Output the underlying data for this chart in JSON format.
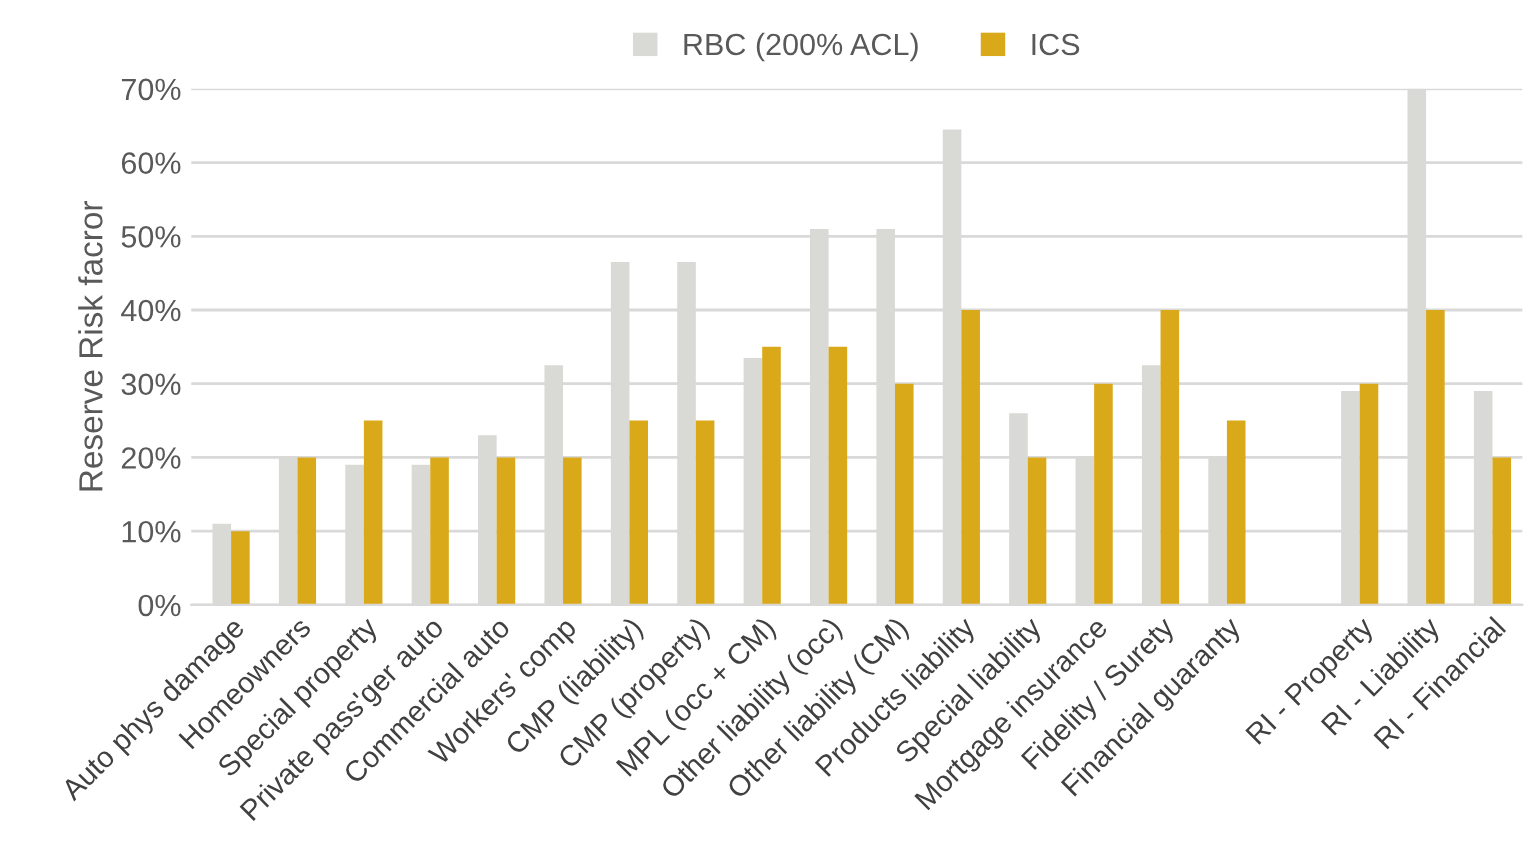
{
  "chart_data": {
    "type": "bar",
    "ylabel": "Reserve Risk facror",
    "categories": [
      "Auto phys damage",
      "Homeowners",
      "Special property",
      "Private pass'ger auto",
      "Commercial auto",
      "Workers' comp",
      "CMP (liability)",
      "CMP (property)",
      "MPL (occ + CM)",
      "Other liability (occ)",
      "Other liability (CM)",
      "Products liability",
      "Special liability",
      "Mortgage insurance",
      "Fidelity / Surety",
      "Financial guaranty",
      null,
      "RI - Property",
      "RI - Liability",
      "RI - Financial"
    ],
    "series": [
      {
        "name": "RBC (200% ACL)",
        "color": "#d9d9d6",
        "values": [
          11,
          20,
          19,
          19,
          23,
          32.5,
          46.5,
          46.5,
          33.5,
          51,
          51,
          64.5,
          26,
          20,
          32.5,
          20,
          null,
          29,
          70,
          29
        ]
      },
      {
        "name": "ICS",
        "color": "#d9a91a",
        "values": [
          10,
          20,
          25,
          20,
          20,
          20,
          25,
          25,
          35,
          35,
          30,
          40,
          20,
          30,
          40,
          25,
          null,
          30,
          40,
          20
        ]
      }
    ],
    "ylim": [
      0,
      70
    ],
    "yticks": [
      {
        "value": 0,
        "label": "0%"
      },
      {
        "value": 10,
        "label": "10%"
      },
      {
        "value": 20,
        "label": "20%"
      },
      {
        "value": 30,
        "label": "30%"
      },
      {
        "value": 40,
        "label": "40%"
      },
      {
        "value": 50,
        "label": "50%"
      },
      {
        "value": 60,
        "label": "60%"
      },
      {
        "value": 70,
        "label": "70%"
      }
    ],
    "grid": "y",
    "legend": "top"
  }
}
